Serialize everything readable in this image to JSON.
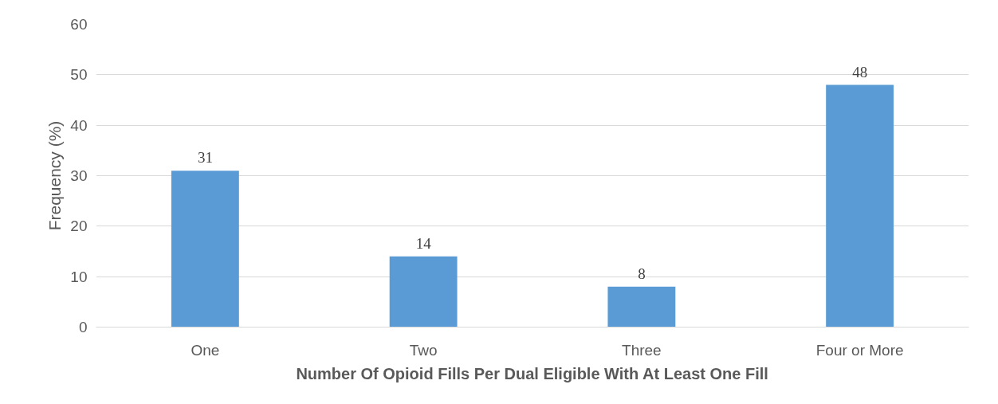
{
  "chart_data": {
    "type": "bar",
    "xlabel": "Number Of Opioid Fills Per Dual Eligible With At Least One Fill",
    "ylabel": "Frequency (%)",
    "categories": [
      "One",
      "Two",
      "Three",
      "Four or More"
    ],
    "values": [
      31,
      14,
      8,
      48
    ],
    "color": "#5b9bd5",
    "ylim": [
      0,
      60
    ],
    "yticks": [
      0,
      10,
      20,
      30,
      40,
      50,
      60
    ],
    "grid": "y",
    "data_labels": true
  }
}
